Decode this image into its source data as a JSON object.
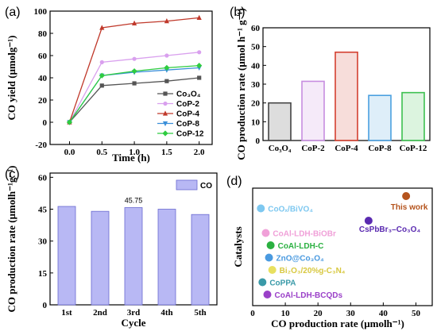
{
  "panels": {
    "a": "(a)",
    "b": "(b)",
    "c": "(c)",
    "d": "(d)"
  },
  "chart_data": [
    {
      "type": "line",
      "xlabel": "Time (h)",
      "ylabel": "CO yield (μmolg⁻¹)",
      "x": [
        0,
        0.5,
        1.0,
        1.5,
        2.0
      ],
      "xticks": [
        "0.0",
        "0.5",
        "1.0",
        "1.5",
        "2.0"
      ],
      "yticks": [
        "-20",
        "0",
        "20",
        "40",
        "60",
        "80",
        "100"
      ],
      "xlim": [
        -0.3,
        2.2
      ],
      "ylim": [
        -20,
        100
      ],
      "legend_position": "bottom-right",
      "series": [
        {
          "name": "Co₃O₄",
          "values": [
            0,
            33,
            35,
            37,
            40
          ],
          "color": "#555555",
          "marker": "square"
        },
        {
          "name": "CoP-2",
          "values": [
            0,
            54,
            57,
            60,
            63
          ],
          "color": "#d9a0ee",
          "marker": "circle"
        },
        {
          "name": "CoP-4",
          "values": [
            0,
            85,
            89,
            91,
            94
          ],
          "color": "#c0392b",
          "marker": "triangle"
        },
        {
          "name": "CoP-8",
          "values": [
            0,
            42,
            45,
            47,
            49
          ],
          "color": "#3a8fd9",
          "marker": "triangle-down"
        },
        {
          "name": "CoP-12",
          "values": [
            0,
            42,
            46,
            49,
            51
          ],
          "color": "#2ecc40",
          "marker": "diamond"
        }
      ]
    },
    {
      "type": "bar",
      "ylabel": "CO production rate  (μmol h⁻¹ g⁻¹)",
      "categories": [
        "Co₃O₄",
        "CoP-2",
        "CoP-4",
        "CoP-8",
        "CoP-12"
      ],
      "values": [
        20,
        31.5,
        47,
        24,
        25.5
      ],
      "colors": [
        "#444444",
        "#c78de0",
        "#d44030",
        "#4aa0e0",
        "#3cc050"
      ],
      "yticks": [
        "0",
        "10",
        "20",
        "30",
        "40",
        "50",
        "60"
      ],
      "ylim": [
        0,
        60
      ]
    },
    {
      "type": "bar",
      "xlabel": "Cycle",
      "ylabel": "CO production rate (μmolh⁻¹g⁻¹)",
      "categories": [
        "1st",
        "2nd",
        "3rd",
        "4th",
        "5th"
      ],
      "values": [
        46.3,
        44,
        45.75,
        45,
        42.5
      ],
      "annotation": {
        "index": 2,
        "text": "45.75"
      },
      "legend": "CO",
      "color": "#b8b8f4",
      "yticks": [
        "0",
        "15",
        "30",
        "45",
        "60"
      ],
      "ylim": [
        0,
        62
      ]
    },
    {
      "type": "scatter",
      "xlabel": "CO production rate (μmolh⁻¹)",
      "ylabel": "Catalysts",
      "xticks": [
        "0",
        "10",
        "20",
        "30",
        "40",
        "50"
      ],
      "xlim": [
        0,
        55
      ],
      "points": [
        {
          "label": "CoOₓ/BiVO₄",
          "x": 2.5,
          "rank": 8,
          "color": "#7ec8f0",
          "text_color": "#7ec8f0"
        },
        {
          "label": "This work",
          "x": 47,
          "rank": 9,
          "color": "#b5541d",
          "text_color": "#b5541d"
        },
        {
          "label": "CsPbBr₃–Co₃O₄",
          "x": 35.5,
          "rank": 7,
          "color": "#5a2ab0",
          "text_color": "#5a2ab0"
        },
        {
          "label": "CoAl-LDH-BiOBr",
          "x": 4,
          "rank": 6,
          "color": "#f0a0d8",
          "text_color": "#f0a0d8"
        },
        {
          "label": "CoAl-LDH-C",
          "x": 5.5,
          "rank": 5,
          "color": "#2ab040",
          "text_color": "#2ab040"
        },
        {
          "label": "ZnO@Co₃O₄",
          "x": 5,
          "rank": 4,
          "color": "#4a9ae0",
          "text_color": "#4a9ae0"
        },
        {
          "label": "Bi₂O₃/20%g-C₃N₄",
          "x": 6,
          "rank": 3,
          "color": "#e8e060",
          "text_color": "#d8c840"
        },
        {
          "label": "CoPPA",
          "x": 3,
          "rank": 2,
          "color": "#3a9aa8",
          "text_color": "#3a9aa8"
        },
        {
          "label": "CoAl-LDH-BCQDs",
          "x": 4.5,
          "rank": 1,
          "color": "#9a40c8",
          "text_color": "#9a40c8"
        }
      ]
    }
  ]
}
